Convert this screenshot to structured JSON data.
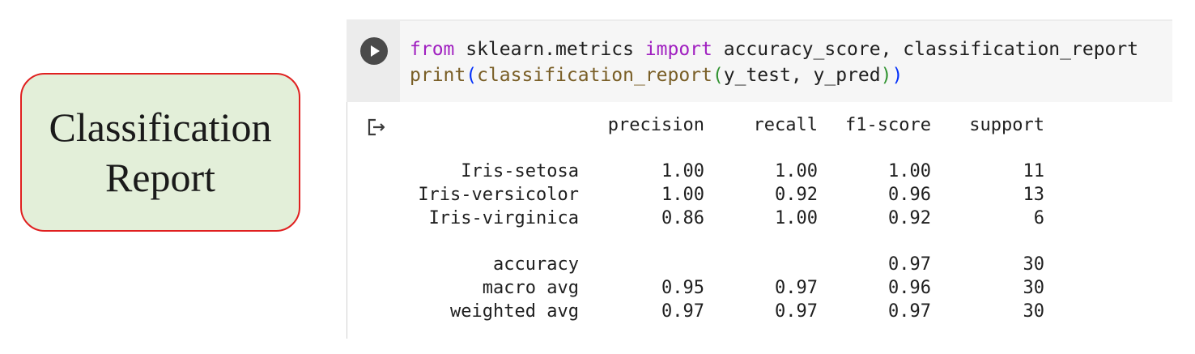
{
  "label": {
    "line1": "Classification",
    "line2": "Report"
  },
  "code": {
    "line1": {
      "kw_from": "from",
      "module": " sklearn.metrics ",
      "kw_import": "import",
      "names": " accuracy_score, classification_report"
    },
    "line2": {
      "fn_print": "print",
      "paren_open": "(",
      "fn_call": "classification_report",
      "paren2_open": "(",
      "args": "y_test, y_pred",
      "paren2_close": ")",
      "paren_close": ")"
    }
  },
  "report": {
    "columns": [
      "precision",
      "recall",
      "f1-score",
      "support"
    ],
    "rows": [
      {
        "label": "Iris-setosa",
        "values": [
          "1.00",
          "1.00",
          "1.00",
          "11"
        ]
      },
      {
        "label": "Iris-versicolor",
        "values": [
          "1.00",
          "0.92",
          "0.96",
          "13"
        ]
      },
      {
        "label": "Iris-virginica",
        "values": [
          "0.86",
          "1.00",
          "0.92",
          "6"
        ]
      },
      {
        "label": "accuracy",
        "values": [
          "",
          "",
          "0.97",
          "30"
        ]
      },
      {
        "label": "macro avg",
        "values": [
          "0.95",
          "0.97",
          "0.96",
          "30"
        ]
      },
      {
        "label": "weighted avg",
        "values": [
          "0.97",
          "0.97",
          "0.97",
          "30"
        ]
      }
    ]
  },
  "icons": {
    "run": "play-icon",
    "output": "output-redirect-icon"
  },
  "colors": {
    "label_border": "#e02020",
    "label_fill": "#e3efd9",
    "keyword": "#a020c0"
  }
}
